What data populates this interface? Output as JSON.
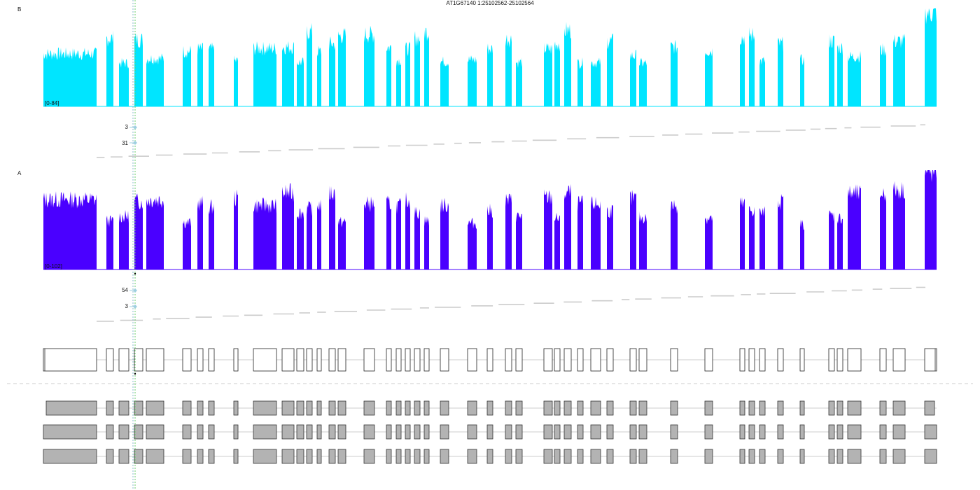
{
  "chart_data": {
    "type": "area",
    "title": "AT1G67140 1:25102562-25102564",
    "panels": [
      {
        "name": "B",
        "range_label": "[0-84]",
        "ylim": [
          0,
          84
        ],
        "color": "#00e5ff",
        "junction_counts": [
          "3",
          "31"
        ]
      },
      {
        "name": "A",
        "range_label": "[0-102]",
        "ylim": [
          0,
          102
        ],
        "color": "#4a00ff",
        "junction_counts": [
          "54",
          "3"
        ]
      }
    ],
    "colors": {
      "transcript_fill": "#b3b3b3",
      "junction_line": "#cccccc",
      "marker_line": "#66cc66",
      "marker_line_2": "#88bbcc"
    }
  }
}
